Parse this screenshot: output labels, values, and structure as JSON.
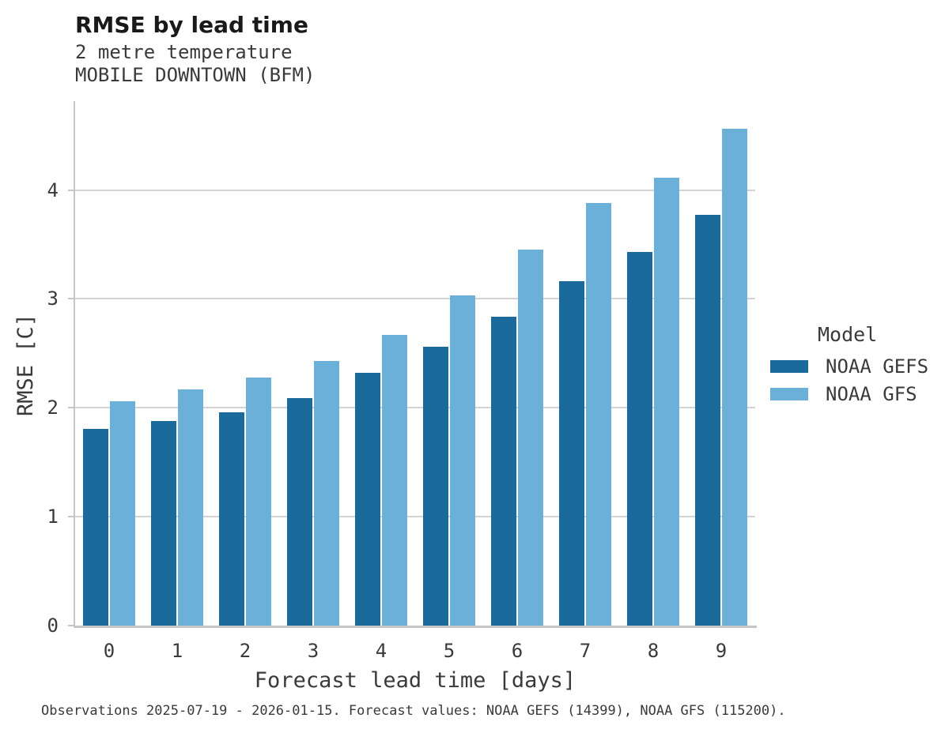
{
  "header": {
    "title": "RMSE by lead time",
    "subtitle_line1": "2 metre temperature",
    "subtitle_line2": "MOBILE DOWNTOWN (BFM)"
  },
  "caption": "Observations 2025-07-19 - 2026-01-15. Forecast values: NOAA GEFS (14399), NOAA GFS (115200).",
  "legend": {
    "title": "Model",
    "entries": [
      {
        "label": "NOAA GEFS",
        "color": "#1a6a9b"
      },
      {
        "label": "NOAA GFS",
        "color": "#6bb0d9"
      }
    ]
  },
  "axes": {
    "xlabel": "Forecast lead time [days]",
    "ylabel": "RMSE [C]"
  },
  "chart_data": {
    "type": "bar",
    "title": "RMSE by lead time",
    "subtitle": [
      "2 metre temperature",
      "MOBILE DOWNTOWN (BFM)"
    ],
    "categories": [
      "0",
      "1",
      "2",
      "3",
      "4",
      "5",
      "6",
      "7",
      "8",
      "9"
    ],
    "series": [
      {
        "name": "NOAA GEFS",
        "color": "#1a6a9b",
        "values": [
          1.81,
          1.88,
          1.96,
          2.09,
          2.32,
          2.56,
          2.84,
          3.16,
          3.43,
          3.77
        ]
      },
      {
        "name": "NOAA GFS",
        "color": "#6bb0d9",
        "values": [
          2.06,
          2.17,
          2.28,
          2.43,
          2.67,
          3.03,
          3.45,
          3.88,
          4.11,
          4.56
        ]
      }
    ],
    "xlabel": "Forecast lead time [days]",
    "ylabel": "RMSE [C]",
    "ylim": [
      0,
      4.81
    ],
    "yticks": [
      0,
      1,
      2,
      3,
      4
    ],
    "grid": "horizontal",
    "legend_title": "Model",
    "legend_position": "center-right",
    "caption": "Observations 2025-07-19 - 2026-01-15. Forecast values: NOAA GEFS (14399), NOAA GFS (115200)."
  },
  "colors": {
    "background": "#ffffff",
    "axis": "#c6c6c6",
    "gridline": "#d3d3d3",
    "title_text": "#191919",
    "body_text": "#3a3a3a"
  }
}
